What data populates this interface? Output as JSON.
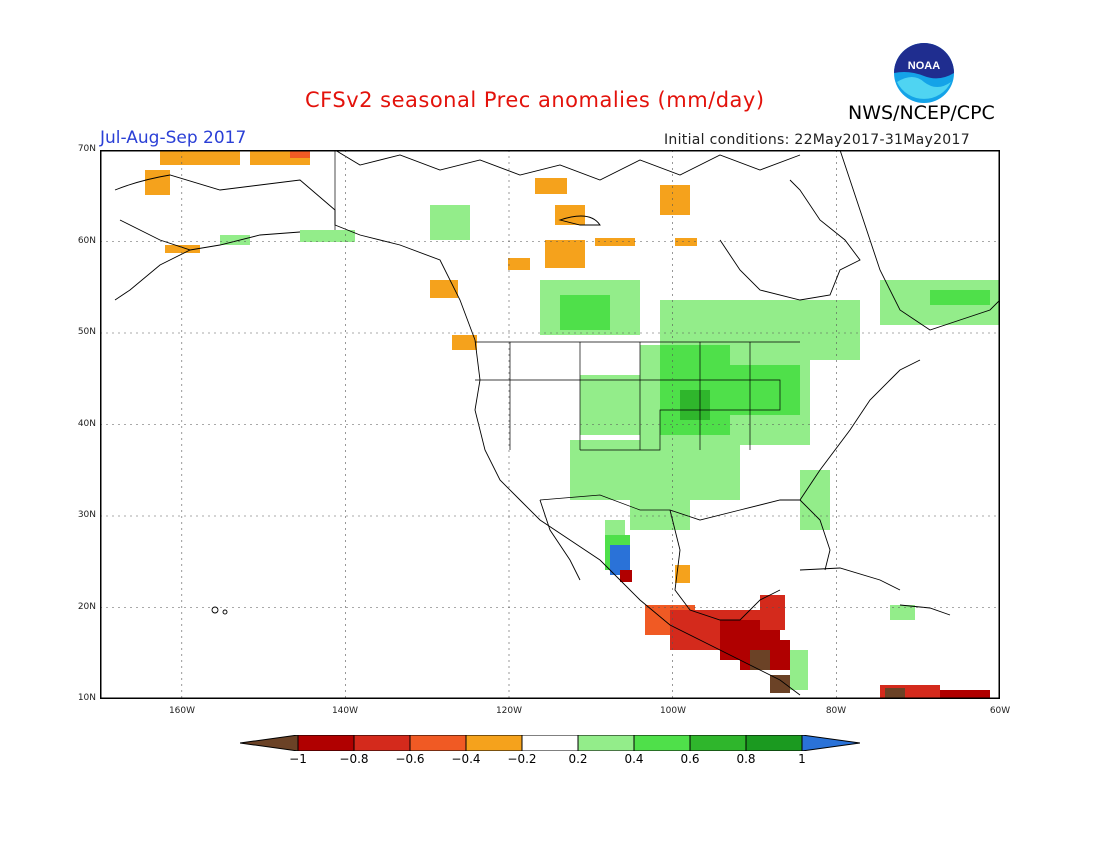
{
  "header": {
    "title": "CFSv2 seasonal Prec anomalies (mm/day)",
    "season": "Jul-Aug-Sep 2017",
    "initial_conditions": "Initial conditions: 22May2017-31May2017",
    "agency": "NWS/NCEP/CPC",
    "logo_text": "NOAA"
  },
  "axes": {
    "lat_labels": [
      "70N",
      "60N",
      "50N",
      "40N",
      "30N",
      "20N",
      "10N"
    ],
    "lon_labels": [
      "160W",
      "140W",
      "120W",
      "100W",
      "80W",
      "60W"
    ]
  },
  "legend": {
    "labels": [
      "−1",
      "−0.8",
      "−0.6",
      "−0.4",
      "−0.2",
      "0.2",
      "0.4",
      "0.6",
      "0.8",
      "1"
    ],
    "colors": [
      "#6b4226",
      "#b00000",
      "#d42a1c",
      "#f05a24",
      "#f5a21c",
      "#ffffff",
      "#93ed8a",
      "#4fe04a",
      "#2fb62c",
      "#1b9a20",
      "#2a72d8"
    ]
  }
}
